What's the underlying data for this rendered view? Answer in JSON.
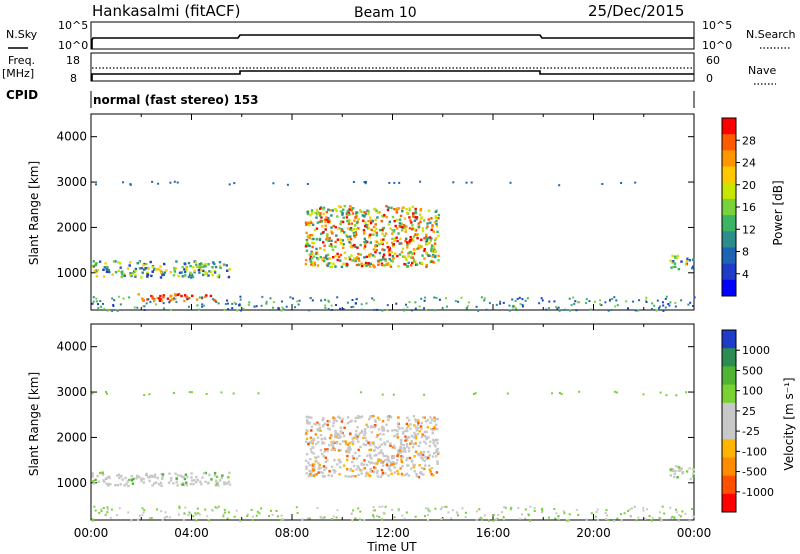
{
  "header": {
    "station": "Hankasalmi (fitACF)",
    "beam": "Beam 10",
    "date": "25/Dec/2015"
  },
  "status_panels": {
    "nsky_label": "N.Sky",
    "nsky_ticks": [
      "10^5",
      "10^0"
    ],
    "nsearch_label": "N.Search",
    "nsearch_ticks": [
      "10^5",
      "10^0"
    ],
    "freq_label": "Freq.",
    "freq_unit": "[MHz]",
    "freq_ticks": [
      "18",
      "8"
    ],
    "nave_label": "Nave",
    "nave_ticks": [
      "60",
      "0"
    ],
    "cpid_label": "CPID",
    "cpid_text": "normal (fast stereo) 153"
  },
  "chart_data": [
    {
      "type": "heatmap",
      "quantity": "power",
      "ylabel": "Slant Range [km]",
      "yticks": [
        "4000",
        "3000",
        "2000",
        "1000"
      ],
      "ylim": [
        180,
        4500
      ],
      "xlim": [
        0,
        24
      ],
      "colorbar": {
        "label": "Power [dB]",
        "ticks": [
          "28",
          "24",
          "20",
          "16",
          "12",
          "8",
          "4"
        ],
        "colors": [
          "#ff0000",
          "#ff5a00",
          "#ff9600",
          "#ffc800",
          "#c8e600",
          "#78d23c",
          "#3cb464",
          "#2d8c8c",
          "#1e64b4",
          "#1e3cc8",
          "#0000ff"
        ]
      },
      "regions": [
        {
          "t": [
            0.0,
            5.5
          ],
          "range": [
            920,
            1280
          ],
          "level": "mid-green"
        },
        {
          "t": [
            1.8,
            5.0
          ],
          "range": [
            400,
            560
          ],
          "level": "high-red"
        },
        {
          "t": [
            8.5,
            13.8
          ],
          "range": [
            1150,
            2500
          ],
          "level": "mixed-orange-red"
        },
        {
          "t": [
            23.0,
            24.0
          ],
          "range": [
            1100,
            1400
          ],
          "level": "mid-green"
        }
      ]
    },
    {
      "type": "heatmap",
      "quantity": "velocity",
      "ylabel": "Slant Range [km]",
      "yticks": [
        "4000",
        "3000",
        "2000",
        "1000"
      ],
      "ylim": [
        180,
        4500
      ],
      "xlim": [
        0,
        24
      ],
      "xticks": [
        "00:00",
        "04:00",
        "08:00",
        "12:00",
        "16:00",
        "20:00",
        "00:00"
      ],
      "xlabel": "Time UT",
      "colorbar": {
        "label": "Velocity [m s⁻¹]",
        "ticks": [
          "1000",
          "500",
          "100",
          "25",
          "-25",
          "-100",
          "-500",
          "-1000"
        ],
        "colors": [
          "#1e3cc8",
          "#2d8c50",
          "#50b432",
          "#78d232",
          "#c8c8c8",
          "#c8c8c8",
          "#ffb400",
          "#ff8c00",
          "#ff5000",
          "#ff0000"
        ]
      },
      "regions": [
        {
          "t": [
            0.0,
            5.5
          ],
          "range": [
            950,
            1250
          ],
          "level": "ground-scatter-gray"
        },
        {
          "t": [
            8.5,
            13.8
          ],
          "range": [
            1150,
            2500
          ],
          "level": "gray-with-orange"
        },
        {
          "t": [
            23.0,
            24.0
          ],
          "range": [
            1100,
            1400
          ],
          "level": "ground-scatter-gray"
        }
      ]
    }
  ]
}
